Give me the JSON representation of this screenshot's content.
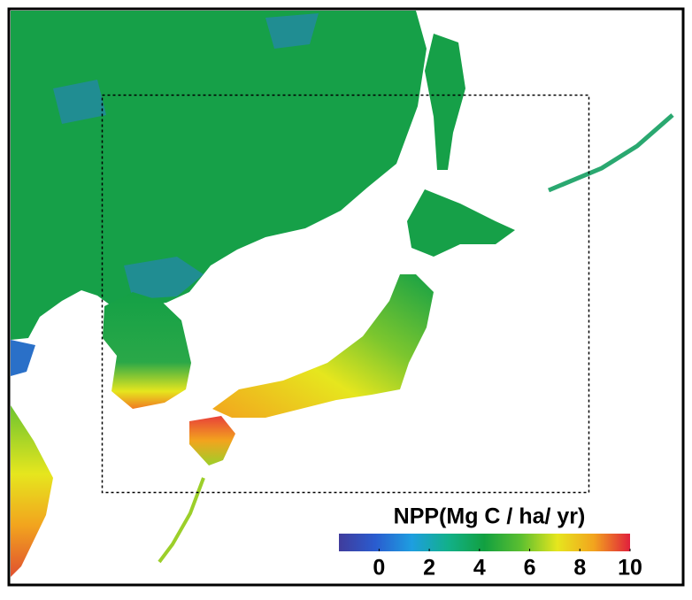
{
  "legend": {
    "title": "NPP(Mg C / ha/ yr)",
    "ticks": [
      0,
      2,
      4,
      6,
      8,
      10
    ],
    "range": [
      -1.6,
      10
    ],
    "colors": [
      "#403c9c",
      "#2a5ccf",
      "#1e9ee0",
      "#12b08a",
      "#12a040",
      "#5cbf30",
      "#e6e61e",
      "#f2a41e",
      "#e0203c"
    ]
  }
}
